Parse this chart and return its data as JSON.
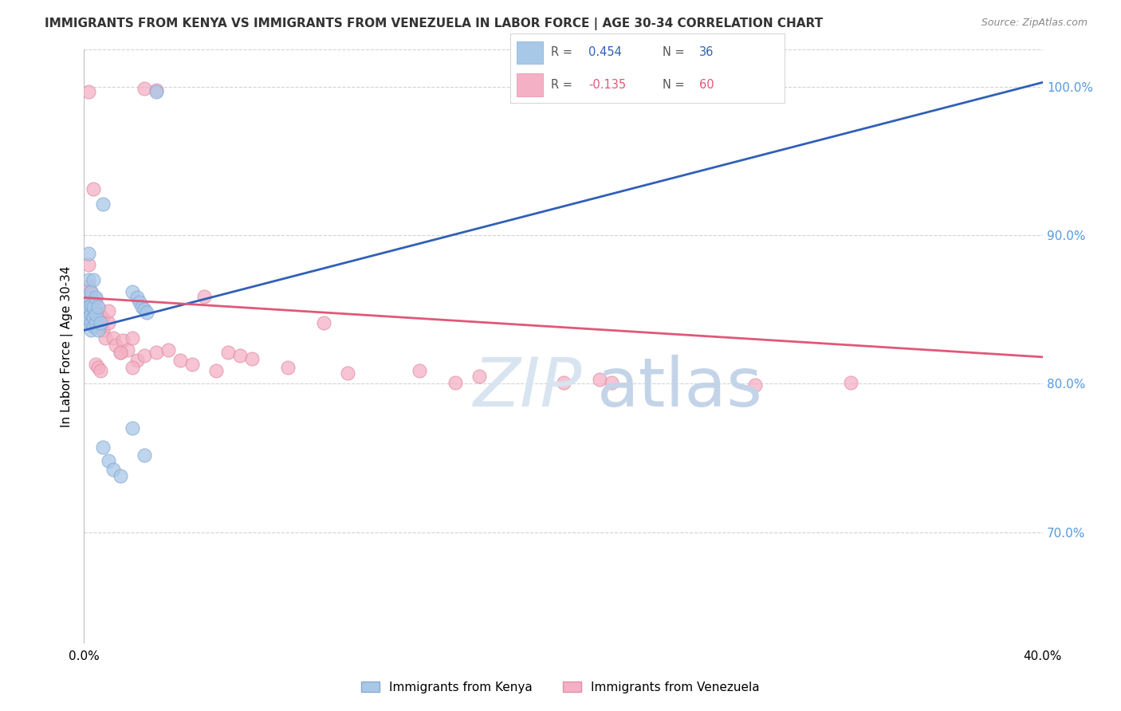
{
  "title": "IMMIGRANTS FROM KENYA VS IMMIGRANTS FROM VENEZUELA IN LABOR FORCE | AGE 30-34 CORRELATION CHART",
  "source": "Source: ZipAtlas.com",
  "ylabel": "In Labor Force | Age 30-34",
  "kenya_R": 0.454,
  "kenya_N": 36,
  "venezuela_R": -0.135,
  "venezuela_N": 60,
  "kenya_color": "#a8c8e8",
  "venezuela_color": "#f4b0c4",
  "kenya_edge_color": "#88aad4",
  "venezuela_edge_color": "#e090a8",
  "kenya_line_color": "#3060b8",
  "venezuela_line_color": "#e05878",
  "background_color": "#ffffff",
  "grid_color": "#c8c8c8",
  "title_color": "#333333",
  "right_label_color": "#5599dd",
  "watermark_color": "#d8e4f0",
  "xlim": [
    0.0,
    0.4
  ],
  "ylim": [
    0.625,
    1.025
  ],
  "yticks_right": [
    0.7,
    0.8,
    0.9,
    1.0
  ],
  "kenya_line_x0": 0.0,
  "kenya_line_y0": 0.836,
  "kenya_line_x1": 0.4,
  "kenya_line_y1": 1.003,
  "venezuela_line_x0": 0.0,
  "venezuela_line_y0": 0.858,
  "venezuela_line_x1": 0.4,
  "venezuela_line_y1": 0.818,
  "kenya_x": [
    0.001,
    0.001,
    0.001,
    0.002,
    0.002,
    0.002,
    0.002,
    0.003,
    0.003,
    0.003,
    0.003,
    0.003,
    0.004,
    0.004,
    0.004,
    0.004,
    0.005,
    0.005,
    0.005,
    0.006,
    0.006,
    0.007,
    0.008,
    0.01,
    0.012,
    0.015,
    0.02,
    0.025,
    0.008,
    0.03,
    0.02,
    0.022,
    0.023,
    0.024,
    0.025,
    0.026
  ],
  "kenya_y": [
    0.844,
    0.851,
    0.858,
    0.845,
    0.852,
    0.87,
    0.888,
    0.836,
    0.841,
    0.847,
    0.853,
    0.862,
    0.839,
    0.845,
    0.852,
    0.87,
    0.841,
    0.847,
    0.858,
    0.836,
    0.852,
    0.841,
    0.757,
    0.748,
    0.742,
    0.738,
    0.77,
    0.752,
    0.921,
    0.997,
    0.862,
    0.858,
    0.855,
    0.852,
    0.85,
    0.848
  ],
  "venezuela_x": [
    0.001,
    0.001,
    0.002,
    0.002,
    0.002,
    0.003,
    0.003,
    0.003,
    0.004,
    0.004,
    0.005,
    0.005,
    0.005,
    0.006,
    0.006,
    0.007,
    0.007,
    0.008,
    0.008,
    0.009,
    0.01,
    0.01,
    0.012,
    0.013,
    0.015,
    0.016,
    0.018,
    0.02,
    0.022,
    0.025,
    0.03,
    0.035,
    0.04,
    0.045,
    0.05,
    0.055,
    0.06,
    0.065,
    0.07,
    0.085,
    0.1,
    0.11,
    0.14,
    0.155,
    0.165,
    0.2,
    0.215,
    0.22,
    0.28,
    0.32,
    0.002,
    0.003,
    0.004,
    0.005,
    0.006,
    0.007,
    0.015,
    0.02,
    0.025,
    0.03
  ],
  "venezuela_y": [
    0.856,
    0.862,
    0.859,
    0.866,
    0.88,
    0.846,
    0.853,
    0.862,
    0.849,
    0.856,
    0.841,
    0.849,
    0.857,
    0.843,
    0.851,
    0.839,
    0.846,
    0.836,
    0.844,
    0.831,
    0.841,
    0.849,
    0.831,
    0.826,
    0.821,
    0.829,
    0.823,
    0.831,
    0.816,
    0.819,
    0.821,
    0.823,
    0.816,
    0.813,
    0.859,
    0.809,
    0.821,
    0.819,
    0.817,
    0.811,
    0.841,
    0.807,
    0.809,
    0.801,
    0.805,
    0.801,
    0.803,
    0.801,
    0.799,
    0.801,
    0.997,
    0.857,
    0.931,
    0.813,
    0.811,
    0.809,
    0.821,
    0.811,
    0.999,
    0.998
  ]
}
